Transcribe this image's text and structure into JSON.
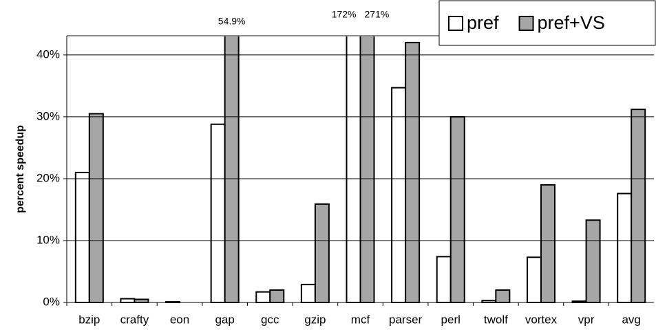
{
  "chart_data": {
    "type": "bar",
    "ylabel": "percent speedup",
    "categories": [
      "bzip",
      "crafty",
      "eon",
      "gap",
      "gcc",
      "gzip",
      "mcf",
      "parser",
      "perl",
      "twolf",
      "vortex",
      "vpr",
      "avg"
    ],
    "series": [
      {
        "name": "pref",
        "color": "#ffffff",
        "values": [
          21,
          0.6,
          0.1,
          28.8,
          1.7,
          2.9,
          172,
          34.7,
          7.4,
          0.3,
          7.3,
          0.2,
          17.6
        ],
        "value_labels": [
          null,
          null,
          null,
          null,
          null,
          null,
          "172%",
          null,
          null,
          null,
          null,
          null,
          null
        ]
      },
      {
        "name": "pref+VS",
        "color": "#a6a6a6",
        "values": [
          30.5,
          0.5,
          0,
          54.9,
          2.0,
          15.9,
          271,
          42,
          30,
          2.0,
          19,
          13.3,
          31.2
        ],
        "value_labels": [
          null,
          null,
          null,
          "54.9%",
          null,
          null,
          "271%",
          null,
          null,
          null,
          null,
          null,
          null
        ]
      }
    ],
    "ylim": [
      0,
      43.1
    ],
    "yticks": [
      {
        "value": 0,
        "label": "0%"
      },
      {
        "value": 10,
        "label": "10%"
      },
      {
        "value": 20,
        "label": "20%"
      },
      {
        "value": 30,
        "label": "30%"
      },
      {
        "value": 40,
        "label": "40%"
      }
    ],
    "grid": true,
    "legend": "top-right"
  }
}
